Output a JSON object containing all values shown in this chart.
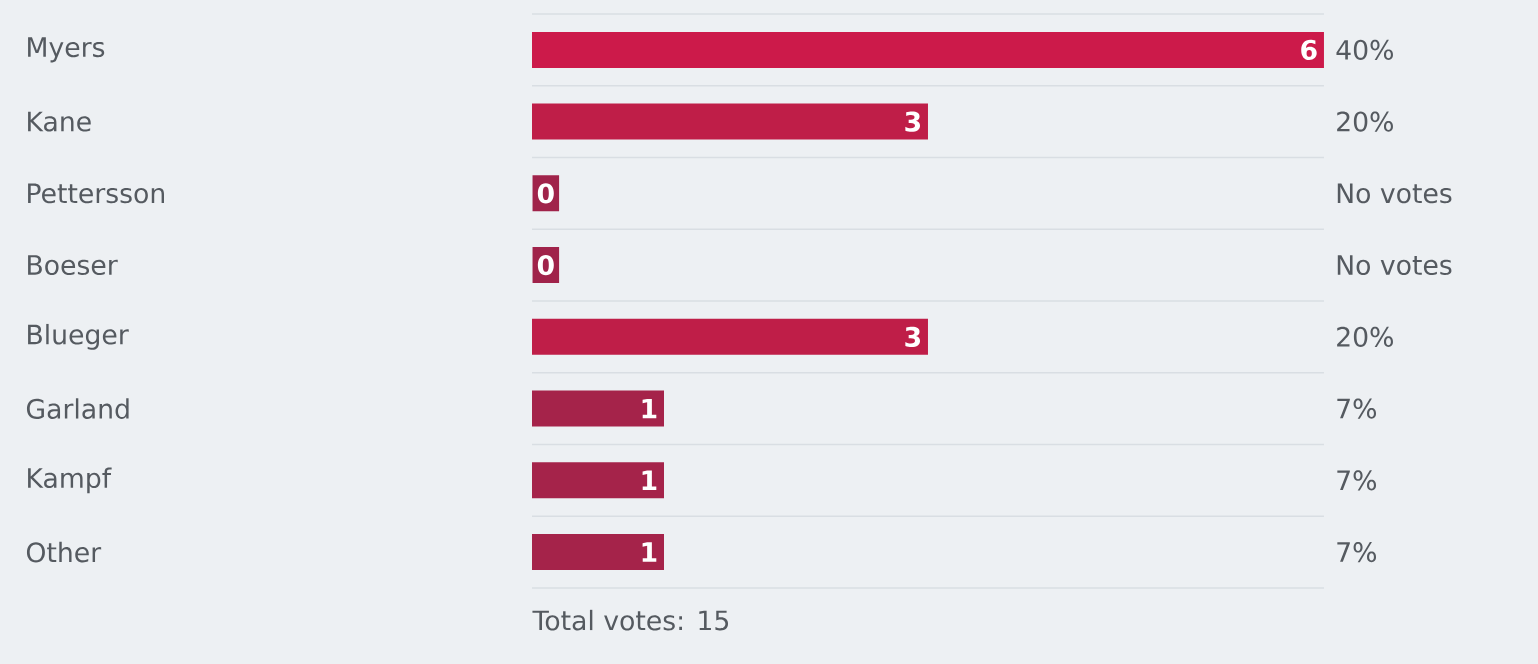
{
  "chart_data": {
    "type": "bar",
    "orientation": "horizontal",
    "grid": "y",
    "data_labels": true,
    "categories": [
      "Myers",
      "Kane",
      "Pettersson",
      "Boeser",
      "Blueger",
      "Garland",
      "Kampf",
      "Other"
    ],
    "values": [
      6,
      3,
      0,
      0,
      3,
      1,
      1,
      1
    ],
    "colors": [
      "#cc1a4a",
      "#bf1e48",
      "#a0234a",
      "#a0234a",
      "#bf1e48",
      "#a5234a",
      "#a5234a",
      "#a5234a"
    ],
    "annotations": [
      "40%",
      "20%",
      "No votes",
      "No votes",
      "20%",
      "7%",
      "7%",
      "7%",
      "Total votes: 15"
    ]
  }
}
